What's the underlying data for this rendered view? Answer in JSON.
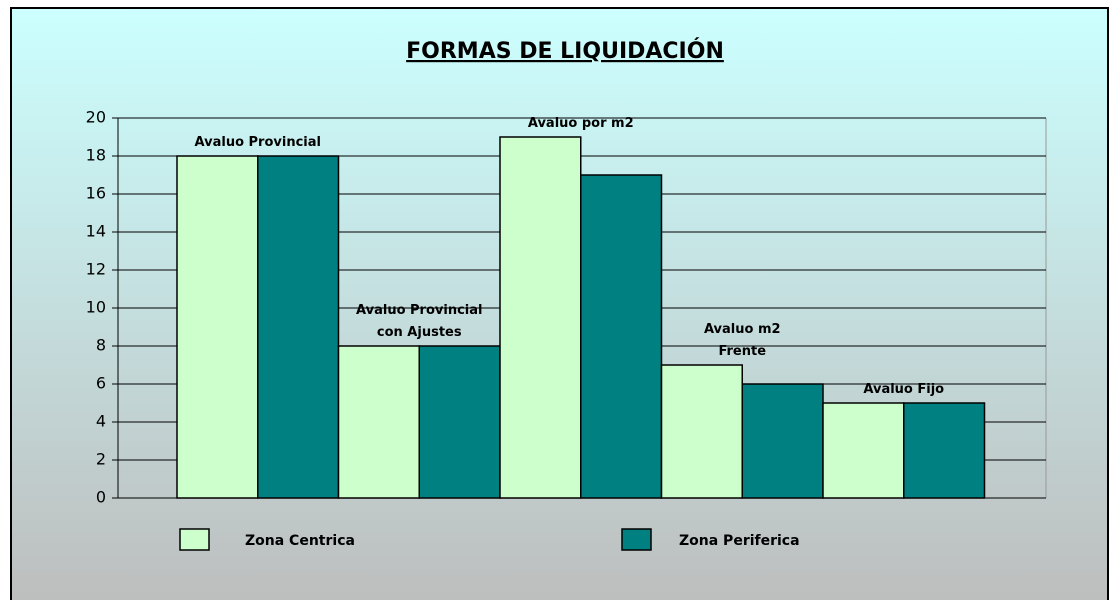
{
  "chart_data": {
    "type": "bar",
    "title": "FORMAS DE LIQUIDACIÓN",
    "categories": [
      "Avaluo Provincial",
      "Avaluo Provincial\ncon Ajustes",
      "Avaluo por m2",
      "Avaluo m2\nFrente",
      "Avaluo Fijo"
    ],
    "series": [
      {
        "name": "Zona Centrica",
        "color": "#ccffcc",
        "values": [
          18,
          8,
          19,
          7,
          5
        ]
      },
      {
        "name": "Zona Periferica",
        "color": "#008080",
        "values": [
          18,
          8,
          17,
          6,
          5
        ]
      }
    ],
    "ylim": [
      0,
      20
    ],
    "yticks": [
      0,
      2,
      4,
      6,
      8,
      10,
      12,
      14,
      16,
      18,
      20
    ],
    "grid": true
  }
}
